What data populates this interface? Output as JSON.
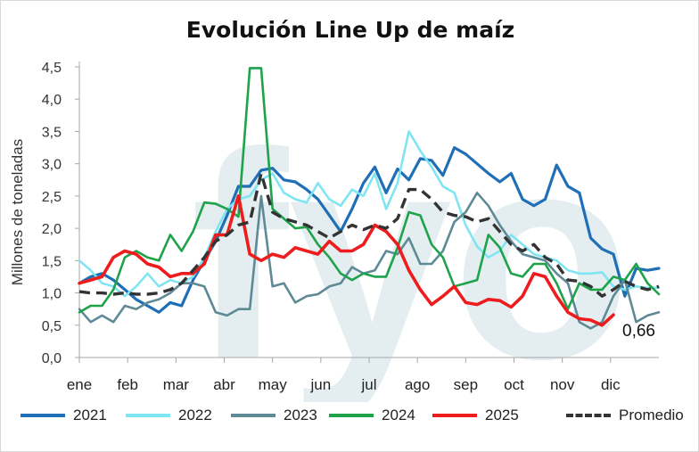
{
  "chart_data": {
    "type": "line",
    "title": "Evolución Line Up de maíz",
    "ylabel": "Millones de toneladas",
    "xlabel": "",
    "ylim": [
      0,
      4.5
    ],
    "yticks": [
      "0,0",
      "0,5",
      "1,0",
      "1,5",
      "2,0",
      "2,5",
      "3,0",
      "3,5",
      "4,0",
      "4,5"
    ],
    "months": [
      "ene",
      "feb",
      "mar",
      "abr",
      "may",
      "jun",
      "jul",
      "ago",
      "sep",
      "oct",
      "nov",
      "dic"
    ],
    "weeks_per_year": 52,
    "grid": false,
    "legend_position": "bottom",
    "watermark": "fyo",
    "last_value_label": "0,66",
    "series": [
      {
        "name": "2021",
        "color": "#1f6fb6",
        "width": 3.2,
        "dash": "",
        "values": [
          1.15,
          1.25,
          1.3,
          1.2,
          1.05,
          0.9,
          0.8,
          0.7,
          0.85,
          0.8,
          1.2,
          1.5,
          1.8,
          2.2,
          2.65,
          2.65,
          2.9,
          2.93,
          2.75,
          2.72,
          2.6,
          2.45,
          2.2,
          1.95,
          2.3,
          2.7,
          2.95,
          2.55,
          2.92,
          2.75,
          3.08,
          3.05,
          2.82,
          3.25,
          3.15,
          3.0,
          2.85,
          2.72,
          2.85,
          2.45,
          2.35,
          2.45,
          2.98,
          2.65,
          2.55,
          1.85,
          1.68,
          1.6,
          0.95,
          1.38,
          1.35,
          1.38
        ]
      },
      {
        "name": "2022",
        "color": "#7fe5f2",
        "width": 2.6,
        "dash": "",
        "values": [
          1.5,
          1.35,
          1.15,
          1.1,
          0.95,
          1.1,
          1.3,
          1.1,
          1.2,
          1.15,
          1.25,
          1.55,
          1.95,
          2.3,
          2.45,
          2.5,
          2.75,
          2.85,
          2.55,
          2.45,
          2.4,
          2.7,
          2.45,
          2.35,
          2.6,
          2.5,
          2.85,
          2.3,
          2.7,
          3.5,
          3.2,
          2.95,
          2.65,
          2.55,
          2.05,
          1.72,
          1.55,
          1.65,
          1.9,
          1.75,
          1.6,
          1.55,
          1.5,
          1.35,
          1.3,
          1.3,
          1.32,
          1.1,
          1.05,
          1.1,
          1.08,
          1.08
        ]
      },
      {
        "name": "2023",
        "color": "#5e8a96",
        "width": 2.6,
        "dash": "",
        "values": [
          0.75,
          0.55,
          0.65,
          0.55,
          0.8,
          0.75,
          0.85,
          0.9,
          1.0,
          1.15,
          1.15,
          1.1,
          0.7,
          0.65,
          0.75,
          0.75,
          2.5,
          1.1,
          1.15,
          0.85,
          0.95,
          0.98,
          1.1,
          1.15,
          1.4,
          1.3,
          1.35,
          1.65,
          1.6,
          1.85,
          1.45,
          1.45,
          1.65,
          2.1,
          2.25,
          2.55,
          2.35,
          2.05,
          1.8,
          1.6,
          1.55,
          1.5,
          1.3,
          1.15,
          0.55,
          0.45,
          0.55,
          0.95,
          1.2,
          0.55,
          0.65,
          0.7
        ]
      },
      {
        "name": "2024",
        "color": "#1ea24a",
        "width": 2.6,
        "dash": "",
        "values": [
          0.7,
          0.8,
          0.8,
          1.05,
          1.55,
          1.65,
          1.55,
          1.5,
          1.9,
          1.65,
          1.95,
          2.4,
          2.38,
          2.3,
          2.18,
          4.48,
          4.48,
          2.3,
          2.15,
          2.0,
          2.02,
          1.75,
          1.55,
          1.3,
          1.2,
          1.3,
          1.25,
          1.25,
          1.7,
          2.25,
          2.2,
          1.75,
          1.55,
          1.1,
          1.15,
          1.2,
          1.9,
          1.7,
          1.3,
          1.25,
          1.45,
          1.45,
          1.15,
          0.75,
          1.15,
          1.05,
          1.05,
          1.25,
          1.2,
          1.45,
          1.15,
          0.98
        ]
      },
      {
        "name": "2025",
        "color": "#ee1c1c",
        "width": 3.6,
        "dash": "",
        "values": [
          1.15,
          1.2,
          1.25,
          1.55,
          1.65,
          1.6,
          1.45,
          1.4,
          1.25,
          1.3,
          1.3,
          1.45,
          1.9,
          1.9,
          2.5,
          1.6,
          1.5,
          1.6,
          1.55,
          1.7,
          1.65,
          1.6,
          1.8,
          1.65,
          1.65,
          1.75,
          2.05,
          1.95,
          1.75,
          1.35,
          1.05,
          0.82,
          0.95,
          1.1,
          0.85,
          0.82,
          0.9,
          0.88,
          0.78,
          0.95,
          1.3,
          1.25,
          0.95,
          0.7,
          0.6,
          0.58,
          0.5,
          0.66
        ]
      },
      {
        "name": "Promedio",
        "color": "#333333",
        "width": 3.4,
        "dash": "12,7",
        "values": [
          1.02,
          1.0,
          1.0,
          0.98,
          1.0,
          0.98,
          0.98,
          1.0,
          1.05,
          1.15,
          1.35,
          1.55,
          1.8,
          1.9,
          2.05,
          2.1,
          2.85,
          2.25,
          2.15,
          2.1,
          2.05,
          1.95,
          1.85,
          1.95,
          2.05,
          1.98,
          2.05,
          2.0,
          2.15,
          2.6,
          2.6,
          2.45,
          2.25,
          2.2,
          2.18,
          2.1,
          2.15,
          1.95,
          1.75,
          1.65,
          1.75,
          1.55,
          1.45,
          1.2,
          1.18,
          1.1,
          0.95,
          1.05,
          1.18,
          1.1,
          1.05,
          1.1
        ]
      }
    ]
  }
}
